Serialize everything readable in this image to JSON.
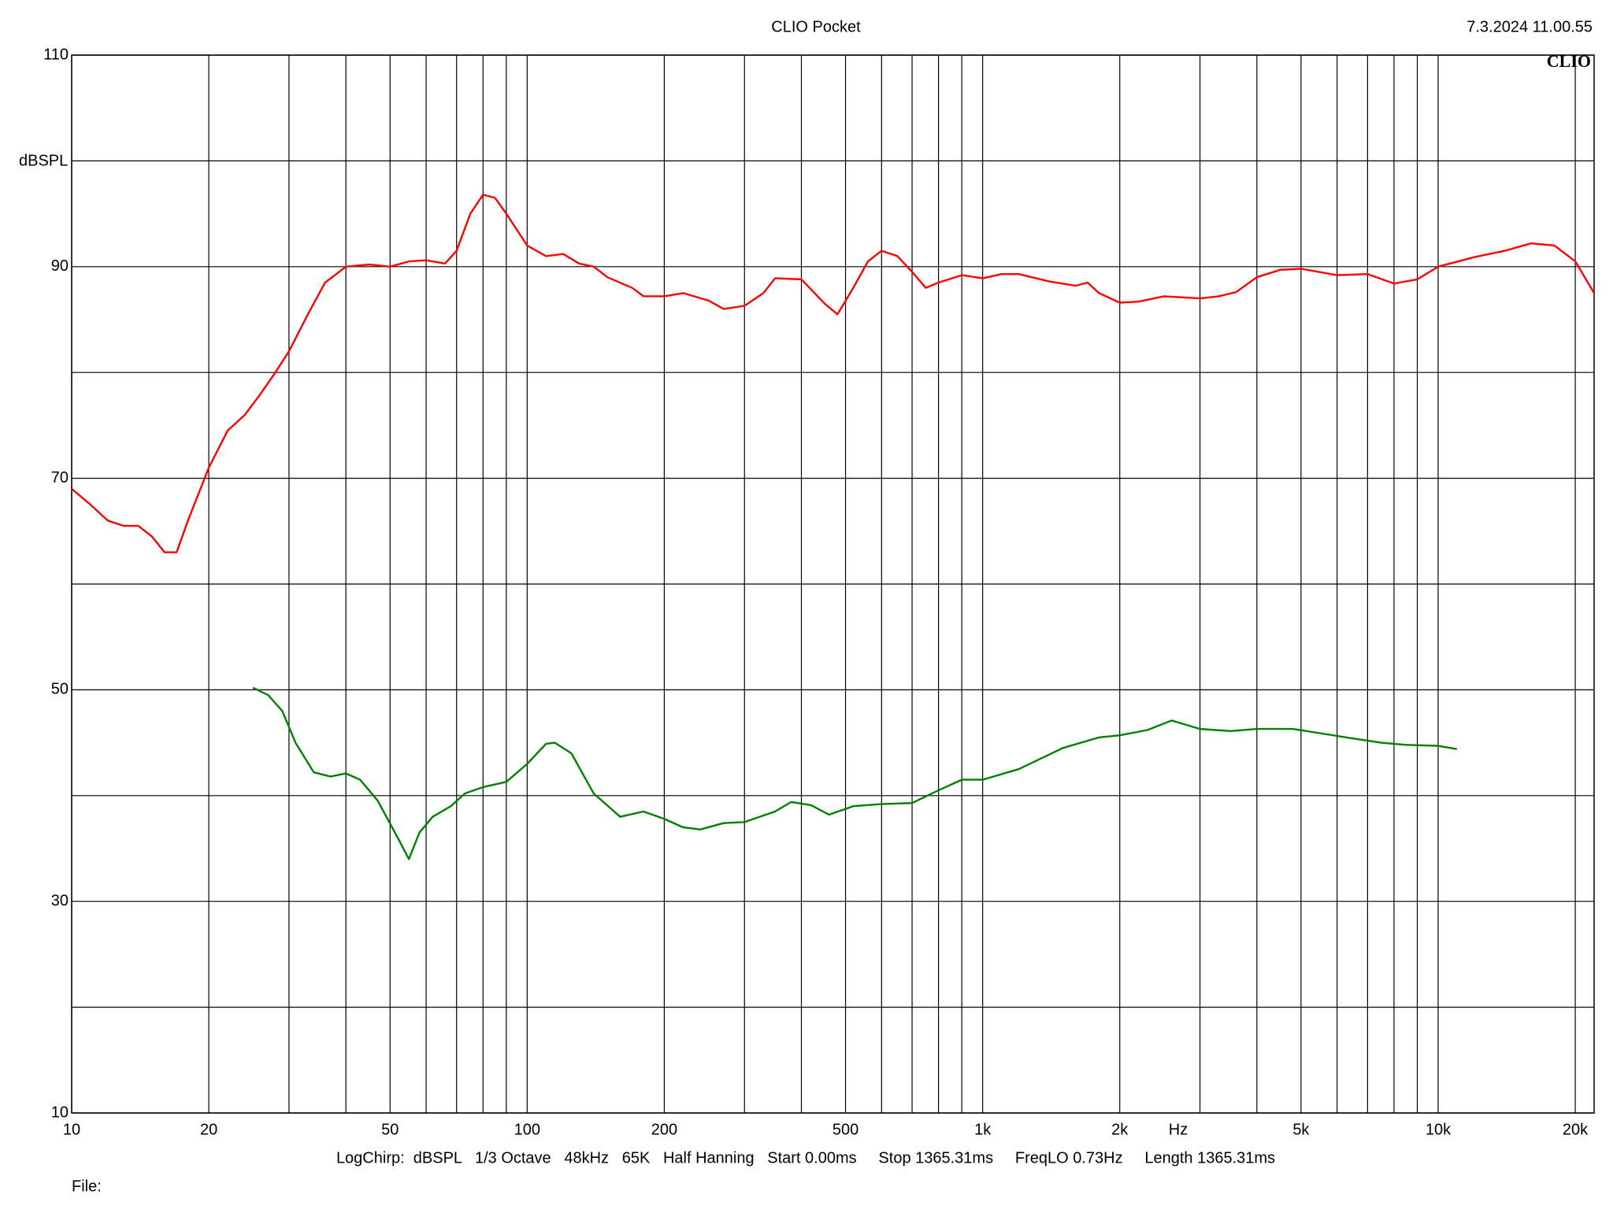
{
  "chart_data": {
    "type": "line",
    "title": "CLIO Pocket",
    "timestamp": "7.3.2024 11.00.55",
    "logo": "CLIO",
    "ylabel": "dBSPL",
    "xlabel": "Hz",
    "footer": "LogChirp:  dBSPL   1/3 Octave   48kHz   65K   Half Hanning   Start 0.00ms     Stop 1365.31ms     FreqLO 0.73Hz     Length 1365.31ms",
    "file_label": "File:",
    "xscale": "log",
    "grid": true,
    "xlim": [
      10,
      22000
    ],
    "ylim": [
      10,
      110
    ],
    "yticks": [
      10,
      30,
      50,
      70,
      90,
      110
    ],
    "ygrid_minor": [
      20,
      40,
      60,
      80,
      100
    ],
    "xticks": [
      10,
      20,
      50,
      100,
      200,
      500,
      {
        "value": 1000,
        "label": "1k"
      },
      {
        "value": 2000,
        "label": "2k"
      },
      {
        "value": 5000,
        "label": "5k"
      },
      {
        "value": 10000,
        "label": "10k"
      },
      {
        "value": 20000,
        "label": "20k"
      }
    ],
    "xgrid_minor": [
      30,
      40,
      60,
      70,
      80,
      90,
      300,
      400,
      600,
      700,
      800,
      900,
      3000,
      4000,
      6000,
      7000,
      8000,
      9000
    ],
    "series": [
      {
        "color": "#ff0000",
        "x": [
          10,
          11,
          12,
          13,
          14,
          15,
          16,
          17,
          18,
          20,
          22,
          24,
          26,
          28,
          30,
          33,
          36,
          40,
          45,
          50,
          55,
          60,
          66,
          70,
          75,
          80,
          85,
          90,
          100,
          110,
          120,
          130,
          140,
          150,
          170,
          180,
          200,
          220,
          250,
          270,
          300,
          330,
          350,
          400,
          450,
          480,
          520,
          560,
          600,
          650,
          700,
          750,
          800,
          900,
          1000,
          1100,
          1200,
          1400,
          1600,
          1700,
          1800,
          2000,
          2200,
          2500,
          3000,
          3300,
          3600,
          4000,
          4500,
          5000,
          6000,
          7000,
          8000,
          9000,
          10000,
          12000,
          14000,
          16000,
          18000,
          20000,
          22000
        ],
        "values": [
          69,
          67.5,
          66,
          65.5,
          65.5,
          64.5,
          63,
          63,
          66,
          71,
          74.5,
          76,
          78,
          80,
          82,
          85.5,
          88.5,
          90,
          90.2,
          90,
          90.5,
          90.6,
          90.3,
          91.5,
          95,
          96.8,
          96.5,
          95,
          92,
          91,
          91.2,
          90.3,
          90,
          89,
          88,
          87.2,
          87.2,
          87.5,
          86.8,
          86,
          86.3,
          87.5,
          88.9,
          88.8,
          86.5,
          85.5,
          88,
          90.5,
          91.5,
          91,
          89.5,
          88,
          88.5,
          89.2,
          88.9,
          89.3,
          89.3,
          88.6,
          88.2,
          88.5,
          87.5,
          86.6,
          86.7,
          87.2,
          87,
          87.2,
          87.6,
          89,
          89.7,
          89.8,
          89.2,
          89.3,
          88.4,
          88.8,
          90,
          90.9,
          91.5,
          92.2,
          92,
          90.5,
          87.5
        ]
      },
      {
        "color": "#008000",
        "x": [
          25,
          27,
          29,
          31,
          34,
          37,
          40,
          43,
          47,
          52,
          55,
          58,
          62,
          68,
          73,
          80,
          90,
          100,
          110,
          115,
          125,
          140,
          160,
          180,
          200,
          220,
          240,
          270,
          300,
          350,
          380,
          420,
          460,
          520,
          600,
          700,
          800,
          900,
          1000,
          1200,
          1500,
          1800,
          2000,
          2300,
          2600,
          3000,
          3500,
          4000,
          4800,
          5500,
          6500,
          7500,
          8500,
          10000,
          11000
        ],
        "values": [
          50.2,
          49.5,
          48,
          45,
          42.2,
          41.8,
          42.1,
          41.5,
          39.5,
          36,
          34,
          36.5,
          38,
          39,
          40.2,
          40.8,
          41.3,
          43,
          44.9,
          45,
          44,
          40.2,
          38,
          38.5,
          37.8,
          37,
          36.8,
          37.4,
          37.5,
          38.5,
          39.4,
          39.1,
          38.2,
          39,
          39.2,
          39.3,
          40.5,
          41.5,
          41.5,
          42.5,
          44.5,
          45.5,
          45.7,
          46.2,
          47.1,
          46.3,
          46.1,
          46.3,
          46.3,
          45.9,
          45.4,
          45,
          44.8,
          44.7,
          44.4
        ]
      }
    ]
  }
}
